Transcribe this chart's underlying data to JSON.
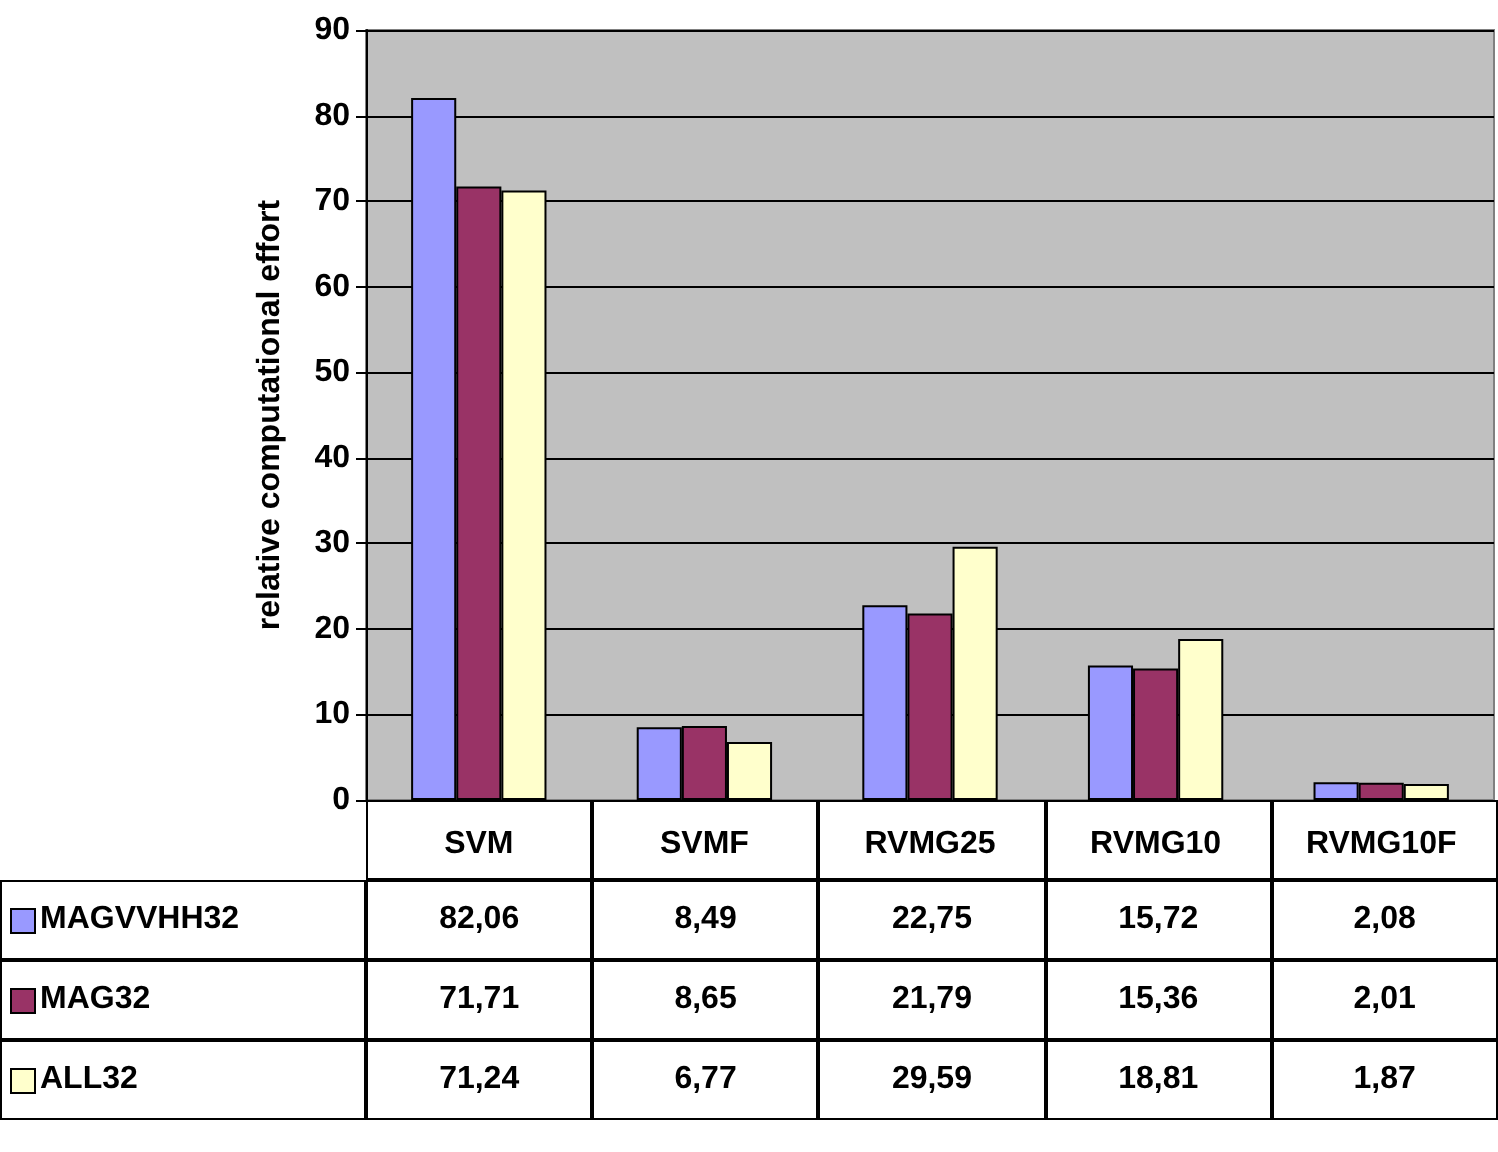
{
  "chart_data": {
    "type": "bar",
    "ylabel": "relative computational effort",
    "categories": [
      "SVM",
      "SVMF",
      "RVMG25",
      "RVMG10",
      "RVMG10F"
    ],
    "series": [
      {
        "name": "MAGVVHH32",
        "color": "#9999ff",
        "values": [
          82.06,
          8.49,
          22.75,
          15.72,
          2.08
        ],
        "value_labels": [
          "82,06",
          "8,49",
          "22,75",
          "15,72",
          "2,08"
        ]
      },
      {
        "name": "MAG32",
        "color": "#993366",
        "values": [
          71.71,
          8.65,
          21.79,
          15.36,
          2.01
        ],
        "value_labels": [
          "71,71",
          "8,65",
          "21,79",
          "15,36",
          "2,01"
        ]
      },
      {
        "name": "ALL32",
        "color": "#ffffcc",
        "values": [
          71.24,
          6.77,
          29.59,
          18.81,
          1.87
        ],
        "value_labels": [
          "71,24",
          "6,77",
          "29,59",
          "18,81",
          "1,87"
        ]
      }
    ],
    "ylim": [
      0,
      90
    ],
    "yticks": [
      0,
      10,
      20,
      30,
      40,
      50,
      60,
      70,
      80,
      90
    ],
    "grid": "y",
    "legend": "bottom left"
  }
}
